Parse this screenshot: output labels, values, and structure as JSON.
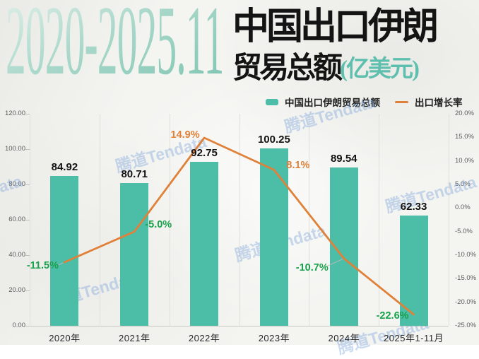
{
  "header": {
    "period": "2020-2025.11",
    "title": "中国出口伊朗",
    "subtitle": "贸易总额",
    "unit": "(亿美元)"
  },
  "legend": {
    "bar_label": "中国出口伊朗贸易总额",
    "line_label": "出口增长率"
  },
  "watermark_text": "腾道Tendata",
  "colors": {
    "bar": "#4cbda7",
    "line": "#e0813a",
    "positive_label": "#e0813a",
    "negative_label": "#18a24b",
    "unit_accent": "#5fbfae"
  },
  "chart_data": {
    "type": "bar",
    "subtype": "bar+line combo",
    "title": "2020-2025.11 中国出口伊朗贸易总额(亿美元)",
    "categories": [
      "2020年",
      "2021年",
      "2022年",
      "2023年",
      "2024年",
      "2025年1-11月"
    ],
    "series": [
      {
        "name": "中国出口伊朗贸易总额",
        "type": "bar",
        "axis": "left",
        "values": [
          84.92,
          80.71,
          92.75,
          100.25,
          89.54,
          62.33
        ],
        "value_labels": [
          "84.92",
          "80.71",
          "92.75",
          "100.25",
          "89.54",
          "62.33"
        ]
      },
      {
        "name": "出口增长率",
        "type": "line",
        "axis": "right",
        "values": [
          -11.5,
          -5.0,
          14.9,
          8.1,
          -10.7,
          -22.6
        ],
        "point_labels": [
          "-11.5%",
          "-5.0%",
          "14.9%",
          "8.1%",
          "-10.7%",
          "-22.6%"
        ]
      }
    ],
    "left_axis": {
      "min": 0,
      "max": 120,
      "ticks": [
        "120.00",
        "100.00",
        "80.00",
        "60.00",
        "40.00",
        "20.00",
        "0.00"
      ]
    },
    "right_axis": {
      "min": -25,
      "max": 20,
      "ticks": [
        "20.0%",
        "15.0%",
        "10.0%",
        "5.0%",
        "0.0%",
        "-5.0%",
        "-10.0%",
        "-15.0%",
        "-20.0%",
        "-25.0%"
      ]
    },
    "grid": "vertical category separators, bottom axis line",
    "legend_position": "top-right above plot"
  }
}
